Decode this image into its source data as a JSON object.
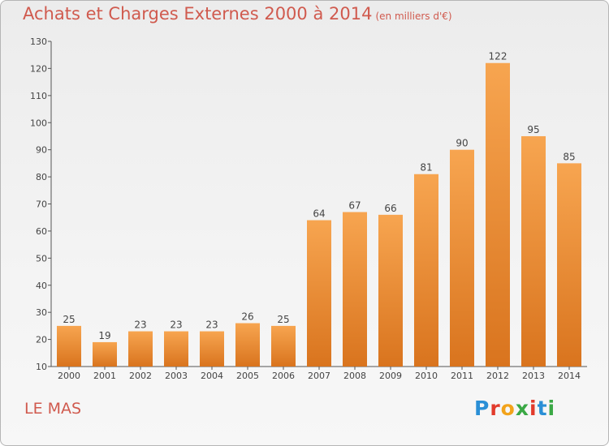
{
  "chart_data": {
    "type": "bar",
    "title": "Achats et Charges Externes 2000 à 2014",
    "subtitle": "(en milliers d'€)",
    "categories": [
      "2000",
      "2001",
      "2002",
      "2003",
      "2004",
      "2005",
      "2006",
      "2007",
      "2008",
      "2009",
      "2010",
      "2011",
      "2012",
      "2013",
      "2014"
    ],
    "values": [
      25,
      19,
      23,
      23,
      23,
      26,
      25,
      64,
      67,
      66,
      81,
      90,
      122,
      95,
      85
    ],
    "ylim": [
      10,
      130
    ],
    "yticks": [
      10,
      20,
      30,
      40,
      50,
      60,
      70,
      80,
      90,
      100,
      110,
      120,
      130
    ],
    "grid": false,
    "bar_color_top": "#f7a550",
    "bar_color_bottom": "#d9741e"
  },
  "town_label": "LE MAS",
  "logo": {
    "letters": [
      "P",
      "r",
      "o",
      "x",
      "i",
      "t",
      "i"
    ],
    "colors": [
      "#2a8fd6",
      "#e23b2c",
      "#f2a31b",
      "#3aa845",
      "#e23b2c",
      "#2a8fd6",
      "#3aa845"
    ]
  }
}
